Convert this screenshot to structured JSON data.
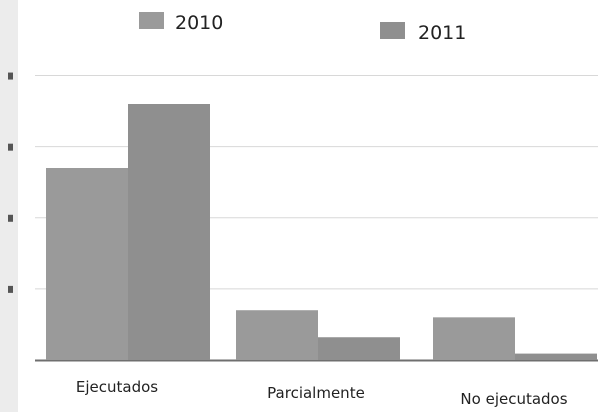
{
  "chart_data": {
    "type": "bar",
    "categories": [
      "Ejecutados",
      "Parcialmente",
      "No ejecutados"
    ],
    "series": [
      {
        "name": "2010",
        "values": [
          27,
          7,
          6
        ]
      },
      {
        "name": "2011",
        "values": [
          36,
          3.2,
          0.9
        ]
      }
    ],
    "ylim": [
      0,
      45
    ],
    "grid": true,
    "legend": "top",
    "colors": {
      "series": [
        "#9a9a9a",
        "#8f8f8f"
      ],
      "axis": "#6f6f6f",
      "grid": "#d8d8d8"
    }
  }
}
